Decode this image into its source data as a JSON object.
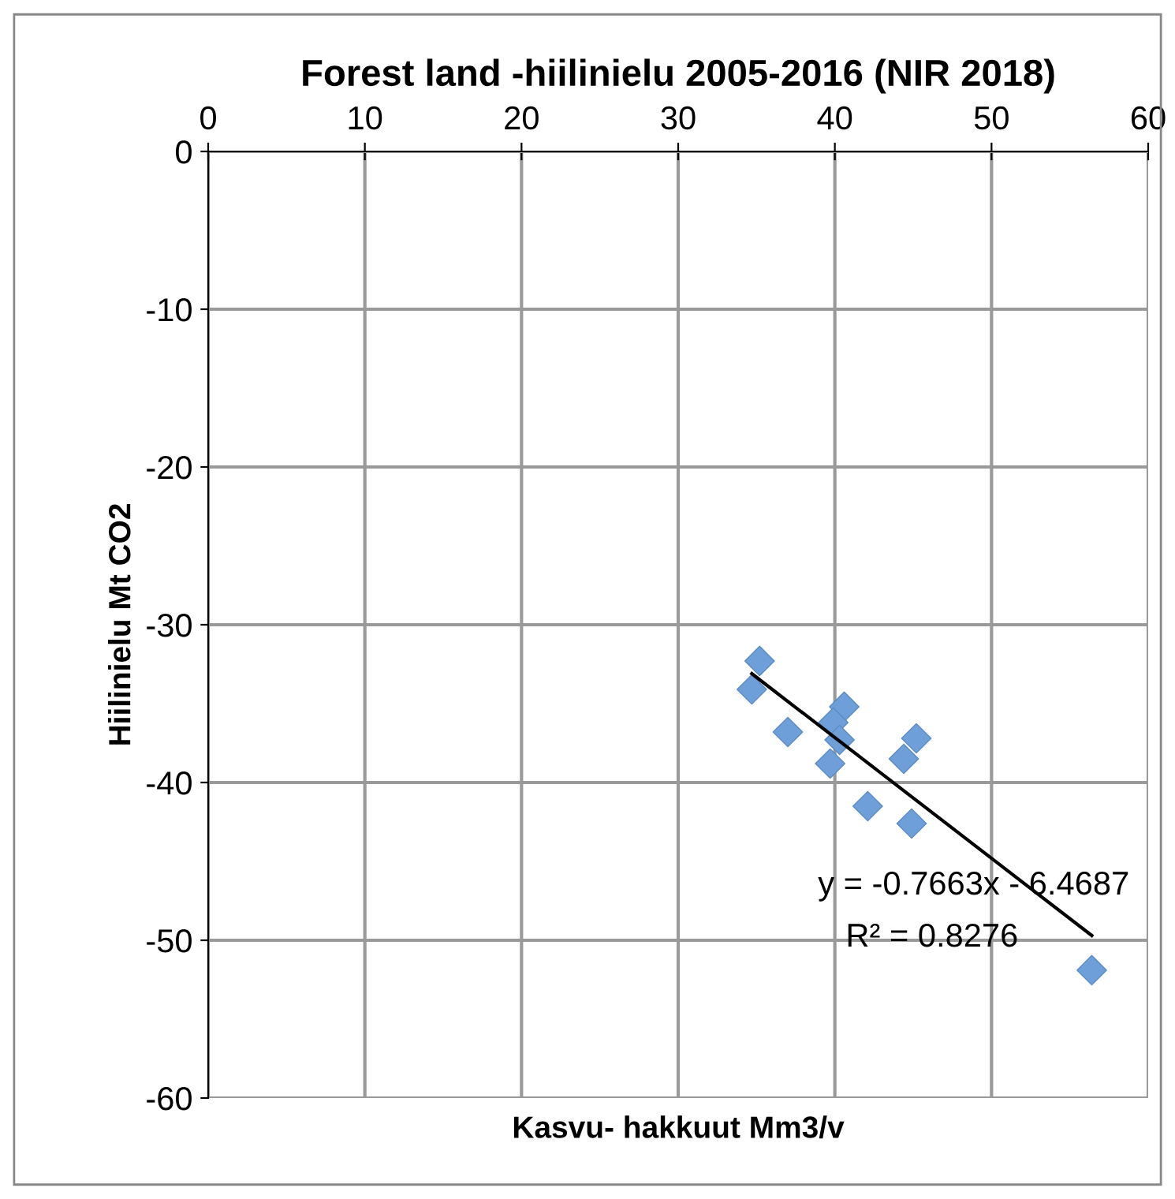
{
  "chart_data": {
    "type": "scatter",
    "title": "Forest land -hiilinielu 2005-2016 (NIR 2018)",
    "xlabel": "Kasvu- hakkuut Mm3/v",
    "ylabel": "Hiilinielu Mt CO2",
    "xlim": [
      0,
      60
    ],
    "xticks": [
      0,
      10,
      20,
      30,
      40,
      50,
      60
    ],
    "ylim": [
      -60,
      0
    ],
    "yticks": [
      -60,
      -50,
      -40,
      -30,
      -20,
      -10,
      0
    ],
    "grid": true,
    "marker": "diamond",
    "series": [
      {
        "color": "#6f9fd8",
        "x": [
          35.2,
          34.7,
          37.0,
          40.6,
          39.9,
          40.3,
          39.7,
          45.2,
          44.4,
          42.1,
          44.9,
          56.4
        ],
        "values": [
          -32.3,
          -34.1,
          -36.8,
          -35.2,
          -36.2,
          -37.3,
          -38.8,
          -37.2,
          -38.5,
          -41.5,
          -42.6,
          -51.9
        ]
      },
      {
        "type": "line",
        "color": "#000000",
        "marker": "none",
        "x": [
          34.7,
          56.4
        ],
        "values": [
          -33.1,
          -49.7
        ]
      }
    ],
    "annotations": [
      "y = -0.7663x - 6.4687",
      "R² = 0.8276"
    ]
  }
}
